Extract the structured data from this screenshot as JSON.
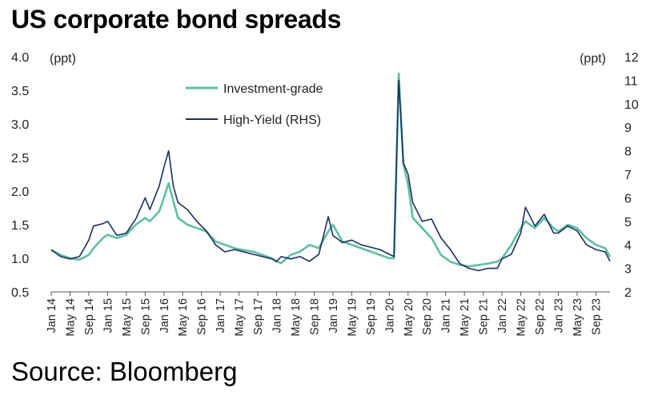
{
  "title": "US corporate bond spreads",
  "source": "Source: Bloomberg",
  "colors": {
    "investment_grade": "#5fbf9f",
    "high_yield": "#1b2f63"
  },
  "chart_data": {
    "type": "line",
    "title": "US corporate bond spreads",
    "y_left": {
      "unit": "(ppt)",
      "ylim": [
        0.5,
        4.0
      ],
      "ticks": [
        "0.5",
        "1.0",
        "1.5",
        "2.0",
        "2.5",
        "3.0",
        "3.5",
        "4.0"
      ]
    },
    "y_right": {
      "unit": "(ppt)",
      "ylim": [
        2,
        12
      ],
      "ticks": [
        "2",
        "3",
        "4",
        "5",
        "6",
        "7",
        "8",
        "9",
        "10",
        "11",
        "12"
      ]
    },
    "x_tick_labels": [
      "Jan 14",
      "May 14",
      "Sep 14",
      "Jan 15",
      "May 15",
      "Sep 15",
      "Jan 16",
      "May 16",
      "Sep 16",
      "Jan 17",
      "May 17",
      "Sep 17",
      "Jan 18",
      "May 18",
      "Sep 18",
      "Jan 19",
      "May 19",
      "Sep 19",
      "Jan 20",
      "May 20",
      "Sep 20",
      "Jan 21",
      "May 21",
      "Sep 21",
      "Jan 22",
      "May 22",
      "Sep 22",
      "Jan 23",
      "May 23",
      "Sep 23"
    ],
    "xlim": [
      "2014-01",
      "2023-12"
    ],
    "grid": false,
    "legend": "top-center",
    "series": [
      {
        "name": "Investment-grade",
        "axis": "left",
        "color": "#5fbf9f",
        "x": [
          "2014-01",
          "2014-03",
          "2014-05",
          "2014-07",
          "2014-09",
          "2014-10",
          "2014-12",
          "2015-01",
          "2015-03",
          "2015-05",
          "2015-07",
          "2015-09",
          "2015-10",
          "2015-12",
          "2016-01",
          "2016-02",
          "2016-03",
          "2016-04",
          "2016-06",
          "2016-08",
          "2016-10",
          "2016-12",
          "2017-02",
          "2017-04",
          "2017-06",
          "2017-08",
          "2017-10",
          "2017-12",
          "2018-01",
          "2018-02",
          "2018-04",
          "2018-06",
          "2018-08",
          "2018-10",
          "2018-12",
          "2019-01",
          "2019-03",
          "2019-05",
          "2019-07",
          "2019-09",
          "2019-11",
          "2020-01",
          "2020-02",
          "2020-03",
          "2020-04",
          "2020-05",
          "2020-06",
          "2020-08",
          "2020-10",
          "2020-12",
          "2021-02",
          "2021-04",
          "2021-06",
          "2021-08",
          "2021-10",
          "2021-12",
          "2022-01",
          "2022-03",
          "2022-05",
          "2022-06",
          "2022-08",
          "2022-10",
          "2022-12",
          "2023-01",
          "2023-03",
          "2023-05",
          "2023-07",
          "2023-09",
          "2023-11",
          "2023-12"
        ],
        "y": [
          1.12,
          1.05,
          1.0,
          0.98,
          1.05,
          1.15,
          1.3,
          1.35,
          1.3,
          1.35,
          1.5,
          1.6,
          1.55,
          1.7,
          1.9,
          2.12,
          1.85,
          1.6,
          1.5,
          1.45,
          1.4,
          1.25,
          1.2,
          1.15,
          1.12,
          1.1,
          1.05,
          1.0,
          0.95,
          0.93,
          1.05,
          1.1,
          1.2,
          1.15,
          1.4,
          1.5,
          1.25,
          1.2,
          1.15,
          1.1,
          1.05,
          1.0,
          1.0,
          3.75,
          2.4,
          2.1,
          1.6,
          1.45,
          1.3,
          1.05,
          0.95,
          0.9,
          0.88,
          0.9,
          0.92,
          0.95,
          1.0,
          1.2,
          1.45,
          1.55,
          1.45,
          1.6,
          1.45,
          1.4,
          1.5,
          1.45,
          1.3,
          1.2,
          1.15,
          1.02
        ]
      },
      {
        "name": "High-Yield (RHS)",
        "axis": "right",
        "color": "#1b2f63",
        "x": [
          "2014-01",
          "2014-03",
          "2014-05",
          "2014-07",
          "2014-09",
          "2014-10",
          "2014-12",
          "2015-01",
          "2015-03",
          "2015-05",
          "2015-07",
          "2015-09",
          "2015-10",
          "2015-12",
          "2016-01",
          "2016-02",
          "2016-03",
          "2016-04",
          "2016-06",
          "2016-08",
          "2016-10",
          "2016-12",
          "2017-02",
          "2017-04",
          "2017-06",
          "2017-08",
          "2017-10",
          "2017-12",
          "2018-01",
          "2018-02",
          "2018-04",
          "2018-06",
          "2018-08",
          "2018-10",
          "2018-12",
          "2019-01",
          "2019-03",
          "2019-05",
          "2019-07",
          "2019-09",
          "2019-11",
          "2020-01",
          "2020-02",
          "2020-03",
          "2020-04",
          "2020-05",
          "2020-06",
          "2020-08",
          "2020-10",
          "2020-12",
          "2021-02",
          "2021-04",
          "2021-06",
          "2021-08",
          "2021-10",
          "2021-12",
          "2022-01",
          "2022-03",
          "2022-05",
          "2022-06",
          "2022-08",
          "2022-10",
          "2022-12",
          "2023-01",
          "2023-03",
          "2023-05",
          "2023-07",
          "2023-09",
          "2023-11",
          "2023-12"
        ],
        "y": [
          3.8,
          3.5,
          3.4,
          3.5,
          4.2,
          4.8,
          4.9,
          5.0,
          4.4,
          4.5,
          5.1,
          6.0,
          5.5,
          6.5,
          7.3,
          8.0,
          6.5,
          5.8,
          5.5,
          5.0,
          4.6,
          4.0,
          3.7,
          3.8,
          3.7,
          3.6,
          3.5,
          3.4,
          3.3,
          3.5,
          3.4,
          3.5,
          3.3,
          3.6,
          5.2,
          4.4,
          4.1,
          4.2,
          4.0,
          3.9,
          3.8,
          3.6,
          3.5,
          11.0,
          7.5,
          7.0,
          5.8,
          5.0,
          5.1,
          4.3,
          3.8,
          3.2,
          3.0,
          2.9,
          3.0,
          3.0,
          3.4,
          3.6,
          4.5,
          5.6,
          4.8,
          5.3,
          4.5,
          4.5,
          4.8,
          4.6,
          4.0,
          3.8,
          3.7,
          3.3
        ]
      }
    ]
  }
}
